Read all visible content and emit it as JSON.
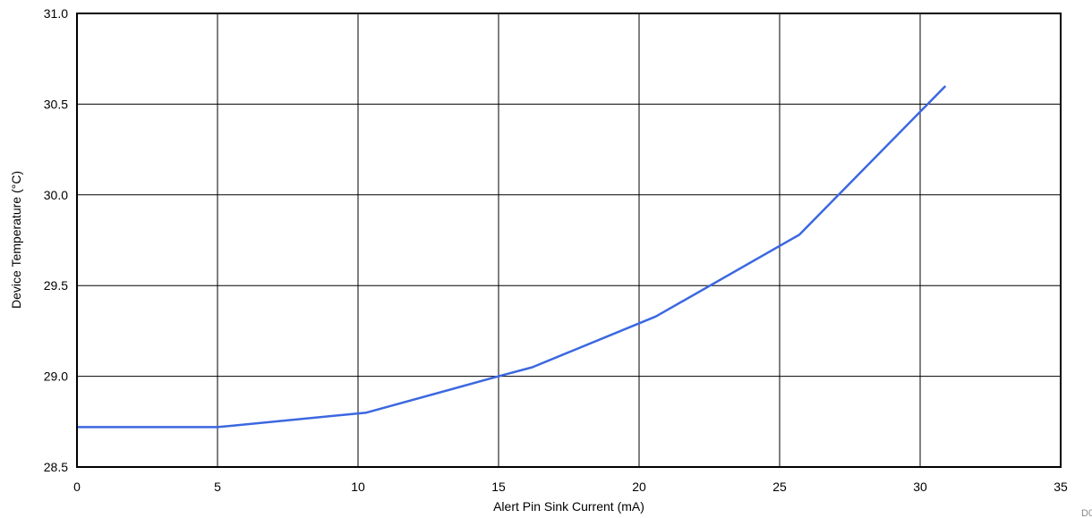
{
  "chart_data": {
    "type": "line",
    "xlabel": "Alert Pin Sink Current (mA)",
    "ylabel": "Device Temperature (°C)",
    "xlim": [
      0,
      35
    ],
    "ylim": [
      28.5,
      31.0
    ],
    "xticks": [
      0,
      5,
      10,
      15,
      20,
      25,
      30,
      35
    ],
    "yticks": [
      28.5,
      29.0,
      29.5,
      30.0,
      30.5,
      31.0
    ],
    "xtick_labels": [
      "0",
      "5",
      "10",
      "15",
      "20",
      "25",
      "30",
      "35"
    ],
    "ytick_labels": [
      "28.5",
      "29.0",
      "29.5",
      "30.0",
      "30.5",
      "31.0"
    ],
    "grid": true,
    "series": [
      {
        "color": "#3b68e0",
        "x": [
          0,
          5,
          10.3,
          15,
          16.2,
          20.6,
          25.7,
          30.9
        ],
        "y": [
          28.72,
          28.72,
          28.8,
          29.0,
          29.05,
          29.33,
          29.78,
          30.6
        ]
      }
    ]
  },
  "figure_id": "D003"
}
